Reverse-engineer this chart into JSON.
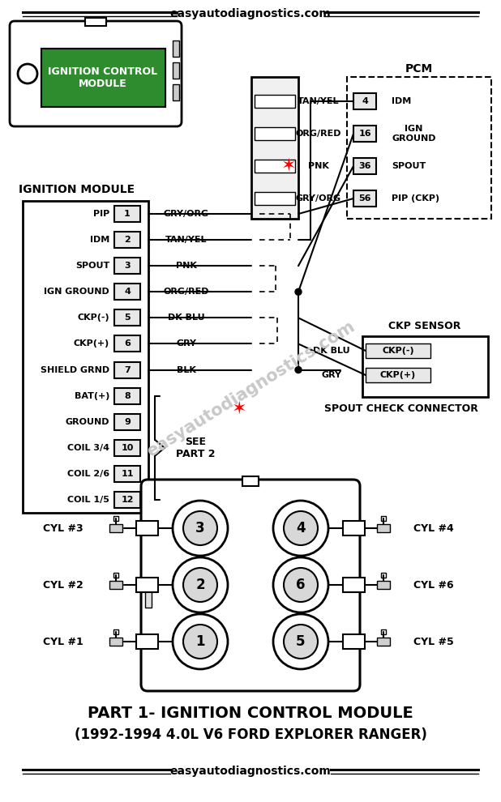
{
  "watermark": "easyautodiagnostics.com",
  "bg": "#ffffff",
  "icm_green": "#2e8b2e",
  "icm_text": "IGNITION CONTROL\nMODULE",
  "pcm_label": "PCM",
  "ckp_label": "CKP SENSOR",
  "ign_module_label": "IGNITION MODULE",
  "pin_labels": [
    "PIP",
    "IDM",
    "SPOUT",
    "IGN GROUND",
    "CKP(-)",
    "CKP(+)",
    "SHIELD GRND",
    "BAT(+)",
    "GROUND",
    "COIL 3/4",
    "COIL 2/6",
    "COIL 1/5"
  ],
  "pin_numbers": [
    "1",
    "2",
    "3",
    "4",
    "5",
    "6",
    "7",
    "8",
    "9",
    "10",
    "11",
    "12"
  ],
  "wire_labels": [
    "GRY/ORG",
    "TAN/YEL",
    "PNK",
    "ORG/RED",
    "DK BLU",
    "GRY",
    "BLK",
    "",
    "",
    "",
    "",
    ""
  ],
  "pcm_pins_num": [
    "4",
    "16",
    "36",
    "56"
  ],
  "pcm_pins_lbl": [
    "IDM",
    "IGN\nGROUND",
    "SPOUT",
    "PIP (CKP)"
  ],
  "pcm_wires": [
    "TAN/YEL",
    "ORG/RED",
    "PNK",
    "GRY/ORG"
  ],
  "ckp_pins": [
    "CKP(-)",
    "CKP(+)"
  ],
  "ckp_wires": [
    "DK BLU",
    "GRY"
  ],
  "see_part2": "SEE\nPART 2",
  "spout_check": "SPOUT CHECK CONNECTOR",
  "cyl_left": [
    "CYL #3",
    "CYL #2",
    "CYL #1"
  ],
  "cyl_right": [
    "CYL #4",
    "CYL #6",
    "CYL #5"
  ],
  "coil_nums_left": [
    "3",
    "2",
    "1"
  ],
  "coil_nums_right": [
    "4",
    "6",
    "5"
  ],
  "title1": "PART 1- IGNITION CONTROL MODULE",
  "title2": "(1992-1994 4.0L V6 FORD EXPLORER RANGER)"
}
